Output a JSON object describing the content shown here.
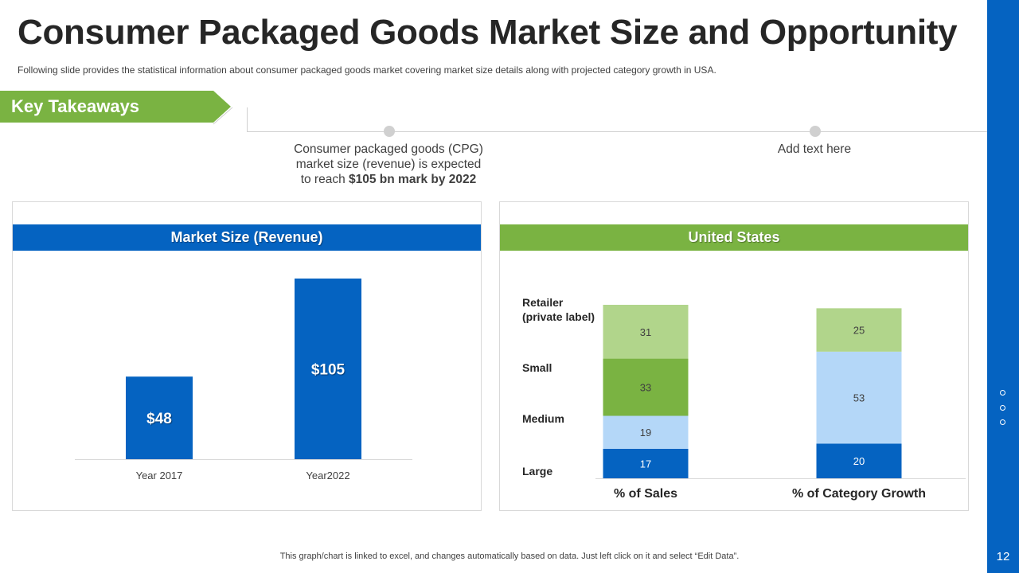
{
  "slide": {
    "title": "Consumer Packaged Goods Market Size and Opportunity",
    "subtitle": "Following slide provides  the statistical information about  consumer packaged goods  market covering  market size details along with projected category growth  in USA.",
    "page_number": "12",
    "footer": "This graph/chart is linked to excel,  and changes automatically based on data. Just left click on it and select “Edit Data”."
  },
  "takeaways": {
    "label": "Key  Takeaways",
    "point1_line1": "Consumer packaged goods (CPG)",
    "point1_line2": "market size (revenue)  is expected",
    "point1_line3_prefix": "to reach ",
    "point1_line3_bold": "$105 bn mark by 2022",
    "point2": "Add text here"
  },
  "panels": {
    "left_header": "Market Size (Revenue)",
    "right_header": "United States"
  },
  "colors": {
    "blue": "#0563C1",
    "green": "#7AB342",
    "light_green": "#B1D58B",
    "light_blue": "#B4D7F8",
    "dark_blue": "#0563C1"
  },
  "chart_data": [
    {
      "type": "bar",
      "title": "Market Size (Revenue)",
      "categories": [
        "Year 2017",
        "Year2022"
      ],
      "values": [
        48,
        105
      ],
      "data_labels": [
        "$48",
        "$105"
      ],
      "ylim": [
        0,
        105
      ],
      "xlabel": "",
      "ylabel": ""
    },
    {
      "type": "bar",
      "stacked": true,
      "title": "United States",
      "categories": [
        "% of Sales",
        "%  of Category Growth"
      ],
      "series": [
        {
          "name": "Large",
          "values": [
            17,
            20
          ]
        },
        {
          "name": "Medium",
          "values": [
            19,
            53
          ]
        },
        {
          "name": "Small",
          "values": [
            33,
            0
          ]
        },
        {
          "name": "Retailer (private label)",
          "values": [
            31,
            25
          ]
        }
      ],
      "legend_labels": [
        "Retailer",
        "(private label)",
        "Small",
        "Medium",
        "Large"
      ],
      "legend_position": "left"
    }
  ]
}
